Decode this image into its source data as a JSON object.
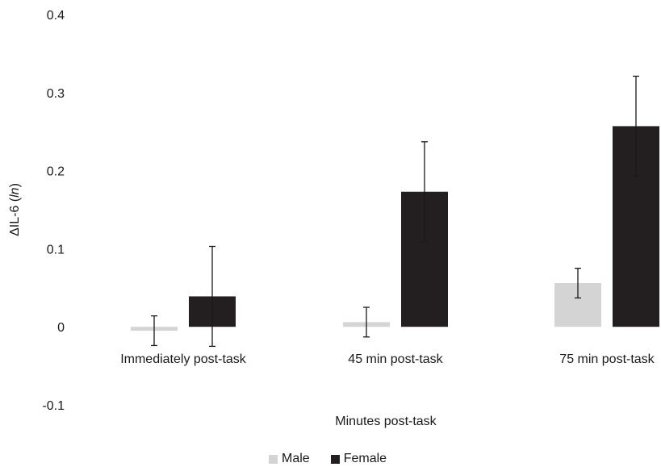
{
  "chart_data": {
    "type": "bar",
    "categories": [
      "Immediately post-task",
      "45 min post-task",
      "75 min post-task"
    ],
    "xlabel": "Minutes post-task",
    "ylabel": "ΔIL-6 (",
    "ylabel_italic": "ln",
    "ylabel_end": ")",
    "ylim": [
      -0.1,
      0.4
    ],
    "yticks": [
      -0.1,
      0,
      0.1,
      0.2,
      0.3,
      0.4
    ],
    "ytick_labels": [
      "-0.1",
      "0",
      "0.1",
      "0.2",
      "0.3",
      "0.4"
    ],
    "grid": false,
    "legend_position": "bottom",
    "error_bars": true,
    "series": [
      {
        "name": "Male",
        "color": "#d4d4d4",
        "values": [
          -0.005,
          0.006,
          0.056
        ],
        "errors": [
          0.019,
          0.019,
          0.019
        ]
      },
      {
        "name": "Female",
        "color": "#231f20",
        "values": [
          0.039,
          0.173,
          0.257
        ],
        "errors": [
          0.064,
          0.064,
          0.064
        ]
      }
    ]
  }
}
